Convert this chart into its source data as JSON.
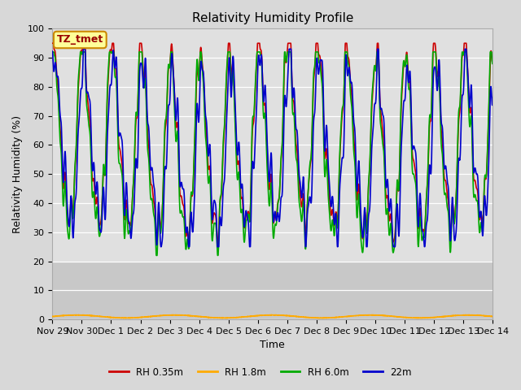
{
  "title": "Relativity Humidity Profile",
  "xlabel": "Time",
  "ylabel": "Relativity Humidity (%)",
  "ylim": [
    0,
    100
  ],
  "fig_bg": "#d8d8d8",
  "plot_bg_upper": "#e8e8e8",
  "plot_bg_lower": "#cccccc",
  "grid_color": "#ffffff",
  "annotation_text": "TZ_tmet",
  "annotation_bg": "#ffff99",
  "annotation_border": "#cc8800",
  "series_colors": [
    "#cc0000",
    "#ffaa00",
    "#00aa00",
    "#0000cc"
  ],
  "series_labels": [
    "RH 0.35m",
    "RH 1.8m",
    "RH 6.0m",
    "22m"
  ],
  "xtick_labels": [
    "Nov 29",
    "Nov 30",
    "Dec 1",
    "Dec 2",
    "Dec 3",
    "Dec 4",
    "Dec 5",
    "Dec 6",
    "Dec 7",
    "Dec 8",
    "Dec 9",
    "Dec 10",
    "Dec 11",
    "Dec 12",
    "Dec 13",
    "Dec 14"
  ],
  "ytick_vals": [
    0,
    10,
    20,
    30,
    40,
    50,
    60,
    70,
    80,
    90,
    100
  ],
  "title_fontsize": 11,
  "axis_label_fontsize": 9,
  "tick_fontsize": 8
}
